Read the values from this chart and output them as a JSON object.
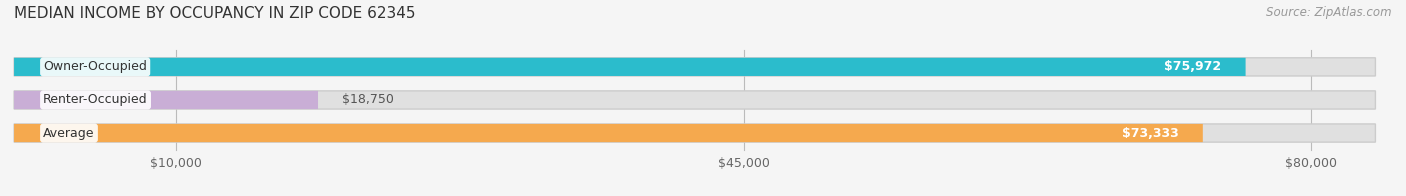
{
  "title": "MEDIAN INCOME BY OCCUPANCY IN ZIP CODE 62345",
  "source": "Source: ZipAtlas.com",
  "categories": [
    "Owner-Occupied",
    "Renter-Occupied",
    "Average"
  ],
  "values": [
    75972,
    18750,
    73333
  ],
  "bar_colors": [
    "#2bbccc",
    "#c9aed6",
    "#f5a94e"
  ],
  "value_labels": [
    "$75,972",
    "$18,750",
    "$73,333"
  ],
  "x_ticks": [
    10000,
    45000,
    80000
  ],
  "x_tick_labels": [
    "$10,000",
    "$45,000",
    "$80,000"
  ],
  "xlim": [
    0,
    85000
  ],
  "background_color": "#f5f5f5",
  "bar_background": "#e0e0e0",
  "title_fontsize": 11,
  "source_fontsize": 8.5,
  "label_fontsize": 9,
  "value_fontsize": 9,
  "tick_fontsize": 9
}
